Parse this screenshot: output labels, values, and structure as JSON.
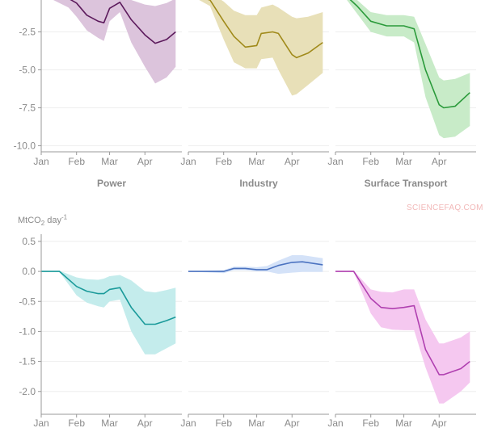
{
  "chart_data": [
    {
      "type": "area",
      "row": "top",
      "ylabel": "",
      "ylim": [
        -10.4,
        -0.4
      ],
      "yticks": [
        -2.5,
        -5.0,
        -7.5,
        -10.0
      ],
      "ytick_labels": [
        "-2.5",
        "-5.0",
        "-7.5",
        "-10.0"
      ],
      "xtick_labels": [
        "Jan",
        "Feb",
        "Mar",
        "Apr"
      ],
      "grid": true,
      "panels": [
        {
          "title": "Power",
          "color": "#5c1a5c",
          "band_color": "#dcc4dc",
          "points": [
            [
              "01-01",
              0,
              0,
              0
            ],
            [
              "01-25",
              -0.3,
              -0.9,
              0.2
            ],
            [
              "02-01",
              -0.6,
              -1.5,
              0.1
            ],
            [
              "02-10",
              -1.4,
              -2.4,
              -0.2
            ],
            [
              "02-20",
              -1.8,
              -2.9,
              -0.3
            ],
            [
              "02-25",
              -1.9,
              -3.1,
              -0.3
            ],
            [
              "03-01",
              -0.95,
              -1.8,
              -0.1
            ],
            [
              "03-10",
              -0.55,
              -1.2,
              0.1
            ],
            [
              "03-20",
              -1.7,
              -3.2,
              -0.4
            ],
            [
              "04-01",
              -2.7,
              -4.8,
              -0.7
            ],
            [
              "04-10",
              -3.25,
              -5.9,
              -0.8
            ],
            [
              "04-20",
              -3.0,
              -5.5,
              -0.6
            ],
            [
              "04-28",
              -2.5,
              -4.8,
              -0.3
            ]
          ]
        },
        {
          "title": "Industry",
          "color": "#a08a1a",
          "band_color": "#e8e0b8",
          "points": [
            [
              "01-01",
              0,
              0,
              0
            ],
            [
              "01-20",
              -0.4,
              -0.8,
              0.1
            ],
            [
              "02-01",
              -1.8,
              -3.0,
              -0.5
            ],
            [
              "02-10",
              -2.8,
              -4.5,
              -1.1
            ],
            [
              "02-20",
              -3.5,
              -4.9,
              -1.4
            ],
            [
              "03-01",
              -3.4,
              -4.9,
              -1.4
            ],
            [
              "03-05",
              -2.6,
              -4.3,
              -0.9
            ],
            [
              "03-15",
              -2.5,
              -4.2,
              -0.7
            ],
            [
              "03-20",
              -2.6,
              -5.0,
              -0.9
            ],
            [
              "04-01",
              -4.0,
              -6.7,
              -1.5
            ],
            [
              "04-05",
              -4.2,
              -6.6,
              -1.6
            ],
            [
              "04-15",
              -3.9,
              -6.0,
              -1.5
            ],
            [
              "04-28",
              -3.2,
              -5.2,
              -1.2
            ]
          ]
        },
        {
          "title": "Surface Transport",
          "color": "#2a9a3a",
          "band_color": "#c8ebc8",
          "points": [
            [
              "01-01",
              0,
              0,
              0
            ],
            [
              "01-10",
              -0.1,
              -0.3,
              0.1
            ],
            [
              "01-20",
              -0.8,
              -1.3,
              -0.4
            ],
            [
              "02-01",
              -1.8,
              -2.5,
              -1.2
            ],
            [
              "02-15",
              -2.1,
              -2.8,
              -1.4
            ],
            [
              "03-01",
              -2.1,
              -2.8,
              -1.4
            ],
            [
              "03-10",
              -2.3,
              -3.2,
              -1.5
            ],
            [
              "03-20",
              -5.0,
              -6.8,
              -3.3
            ],
            [
              "04-01",
              -7.3,
              -9.3,
              -5.5
            ],
            [
              "04-05",
              -7.5,
              -9.5,
              -5.7
            ],
            [
              "04-15",
              -7.4,
              -9.4,
              -5.6
            ],
            [
              "04-28",
              -6.5,
              -8.7,
              -5.2
            ]
          ]
        }
      ]
    },
    {
      "type": "area",
      "row": "bottom",
      "ylabel": "MtCO",
      "ylabel_sub": "2",
      "ylabel_rest": " day",
      "ylabel_sup": "-1",
      "ylim": [
        -2.38,
        0.62
      ],
      "yticks": [
        0.5,
        0.0,
        -0.5,
        -1.0,
        -1.5,
        -2.0
      ],
      "ytick_labels": [
        "0.5",
        "0.0",
        "-0.5",
        "-1.0",
        "-1.5",
        "-2.0"
      ],
      "xtick_labels": [
        "Jan",
        "Feb",
        "Mar",
        "Apr"
      ],
      "grid": true,
      "panels": [
        {
          "color": "#1a9a9a",
          "band_color": "#c4ecec",
          "points": [
            [
              "01-01",
              0,
              0,
              0
            ],
            [
              "01-17",
              0,
              -0.01,
              0.01
            ],
            [
              "02-01",
              -0.25,
              -0.4,
              -0.1
            ],
            [
              "02-10",
              -0.33,
              -0.52,
              -0.13
            ],
            [
              "02-20",
              -0.37,
              -0.58,
              -0.14
            ],
            [
              "02-25",
              -0.37,
              -0.6,
              -0.12
            ],
            [
              "03-01",
              -0.3,
              -0.5,
              -0.08
            ],
            [
              "03-10",
              -0.27,
              -0.47,
              -0.06
            ],
            [
              "03-20",
              -0.6,
              -1.0,
              -0.15
            ],
            [
              "04-01",
              -0.88,
              -1.38,
              -0.33
            ],
            [
              "04-10",
              -0.88,
              -1.38,
              -0.35
            ],
            [
              "04-20",
              -0.82,
              -1.28,
              -0.31
            ],
            [
              "04-28",
              -0.76,
              -1.2,
              -0.27
            ]
          ]
        },
        {
          "color": "#4a72c0",
          "band_color": "#d4e2f8",
          "points": [
            [
              "01-01",
              0,
              0,
              0
            ],
            [
              "02-01",
              0,
              -0.03,
              0.02
            ],
            [
              "02-10",
              0.05,
              0.02,
              0.08
            ],
            [
              "02-20",
              0.05,
              0.02,
              0.08
            ],
            [
              "03-01",
              0.03,
              0.0,
              0.07
            ],
            [
              "03-10",
              0.03,
              0.0,
              0.09
            ],
            [
              "03-20",
              0.1,
              -0.04,
              0.18
            ],
            [
              "04-01",
              0.15,
              -0.02,
              0.27
            ],
            [
              "04-10",
              0.16,
              -0.01,
              0.27
            ],
            [
              "04-28",
              0.11,
              -0.01,
              0.22
            ]
          ]
        },
        {
          "color": "#b040b0",
          "band_color": "#f5c8f0",
          "points": [
            [
              "01-01",
              0,
              0,
              0
            ],
            [
              "01-17",
              0,
              -0.01,
              0.01
            ],
            [
              "02-01",
              -0.45,
              -0.7,
              -0.3
            ],
            [
              "02-10",
              -0.6,
              -0.93,
              -0.34
            ],
            [
              "02-20",
              -0.62,
              -0.97,
              -0.35
            ],
            [
              "03-01",
              -0.6,
              -0.98,
              -0.3
            ],
            [
              "03-10",
              -0.57,
              -0.98,
              -0.3
            ],
            [
              "03-20",
              -1.3,
              -1.6,
              -0.8
            ],
            [
              "04-01",
              -1.72,
              -2.2,
              -1.2
            ],
            [
              "04-05",
              -1.72,
              -2.2,
              -1.2
            ],
            [
              "04-20",
              -1.62,
              -2.0,
              -1.1
            ],
            [
              "04-28",
              -1.5,
              -1.85,
              -1.0
            ]
          ]
        }
      ]
    }
  ],
  "watermark": "SCIENCEFAQ.COM"
}
